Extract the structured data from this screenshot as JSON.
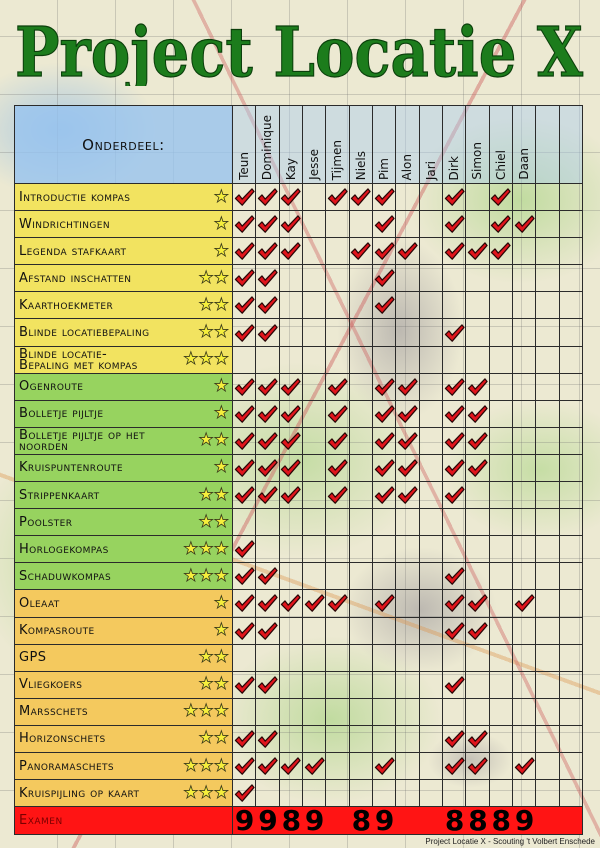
{
  "title": "Project Locatie X",
  "header": {
    "onderdeel_label": "Onderdeel:"
  },
  "participants": [
    "Teun",
    "Dominique",
    "Kay",
    "Jesse",
    "Tijmen",
    "Niels",
    "Pim",
    "Alon",
    "Jari",
    "Dirk",
    "Simon",
    "Chiel",
    "Daan"
  ],
  "rows": [
    {
      "label": "Introductie kompas",
      "stars": 1,
      "band": 0,
      "done": [
        "Teun",
        "Dominique",
        "Kay",
        "Tijmen",
        "Niels",
        "Pim",
        "Dirk",
        "Chiel"
      ]
    },
    {
      "label": "Windrichtingen",
      "stars": 1,
      "band": 0,
      "done": [
        "Teun",
        "Dominique",
        "Kay",
        "Pim",
        "Dirk",
        "Chiel",
        "Daan"
      ]
    },
    {
      "label": "Legenda stafkaart",
      "stars": 1,
      "band": 0,
      "done": [
        "Teun",
        "Dominique",
        "Kay",
        "Niels",
        "Pim",
        "Alon",
        "Dirk",
        "Simon",
        "Chiel"
      ]
    },
    {
      "label": "Afstand inschatten",
      "stars": 2,
      "band": 0,
      "done": [
        "Teun",
        "Dominique",
        "Pim"
      ]
    },
    {
      "label": "Kaarthoekmeter",
      "stars": 2,
      "band": 0,
      "done": [
        "Teun",
        "Dominique",
        "Pim"
      ]
    },
    {
      "label": "Blinde locatiebepaling",
      "stars": 2,
      "band": 0,
      "done": [
        "Teun",
        "Dominique",
        "Dirk"
      ]
    },
    {
      "label": "Blinde locatie-\nBepaling met kompas",
      "stars": 3,
      "band": 0,
      "done": []
    },
    {
      "label": "Ogenroute",
      "stars": 1,
      "band": 1,
      "done": [
        "Teun",
        "Dominique",
        "Kay",
        "Tijmen",
        "Pim",
        "Alon",
        "Dirk",
        "Simon"
      ]
    },
    {
      "label": "Bolletje pijltje",
      "stars": 1,
      "band": 1,
      "done": [
        "Teun",
        "Dominique",
        "Kay",
        "Tijmen",
        "Pim",
        "Alon",
        "Dirk",
        "Simon"
      ]
    },
    {
      "label": "Bolletje pijltje op het\nnoorden",
      "stars": 2,
      "band": 1,
      "done": [
        "Teun",
        "Dominique",
        "Kay",
        "Tijmen",
        "Pim",
        "Alon",
        "Dirk",
        "Simon"
      ]
    },
    {
      "label": "Kruispuntenroute",
      "stars": 1,
      "band": 1,
      "done": [
        "Teun",
        "Dominique",
        "Kay",
        "Tijmen",
        "Pim",
        "Alon",
        "Dirk",
        "Simon"
      ]
    },
    {
      "label": "Strippenkaart",
      "stars": 2,
      "band": 1,
      "done": [
        "Teun",
        "Dominique",
        "Kay",
        "Tijmen",
        "Pim",
        "Alon",
        "Dirk"
      ]
    },
    {
      "label": "Poolster",
      "stars": 2,
      "band": 1,
      "done": []
    },
    {
      "label": "Horlogekompas",
      "stars": 3,
      "band": 1,
      "done": [
        "Teun"
      ]
    },
    {
      "label": "Schaduwkompas",
      "stars": 3,
      "band": 1,
      "done": [
        "Teun",
        "Dominique",
        "Dirk"
      ]
    },
    {
      "label": "Oleaat",
      "stars": 1,
      "band": 2,
      "done": [
        "Teun",
        "Dominique",
        "Kay",
        "Jesse",
        "Tijmen",
        "Pim",
        "Dirk",
        "Simon",
        "Daan"
      ]
    },
    {
      "label": "Kompasroute",
      "stars": 1,
      "band": 2,
      "done": [
        "Teun",
        "Dominique",
        "Dirk",
        "Simon"
      ]
    },
    {
      "label": "GPS",
      "stars": 2,
      "band": 2,
      "done": []
    },
    {
      "label": "Vliegkoers",
      "stars": 2,
      "band": 2,
      "done": [
        "Teun",
        "Dominique",
        "Dirk"
      ]
    },
    {
      "label": "Marsschets",
      "stars": 3,
      "band": 2,
      "done": []
    },
    {
      "label": "Horizonschets",
      "stars": 2,
      "band": 2,
      "done": [
        "Teun",
        "Dominique",
        "Dirk",
        "Simon"
      ]
    },
    {
      "label": "Panoramaschets",
      "stars": 3,
      "band": 2,
      "done": [
        "Teun",
        "Dominique",
        "Kay",
        "Jesse",
        "Pim",
        "Dirk",
        "Simon",
        "Daan"
      ]
    },
    {
      "label": "Kruispijling op kaart",
      "stars": 3,
      "band": 2,
      "done": [
        "Teun"
      ]
    }
  ],
  "examen": {
    "label": "Examen",
    "grades": {
      "Teun": "9",
      "Dominique": "9",
      "Kay": "8",
      "Jesse": "9",
      "Niels": "8",
      "Pim": "9",
      "Dirk": "8",
      "Simon": "8",
      "Chiel": "8",
      "Daan": "9"
    }
  },
  "footer": "Project Locatie X - Scouting 't Volbert Enschede",
  "icons": {
    "check": "check-icon",
    "star": "star-icon"
  },
  "colors": {
    "title": "#1c7c1c",
    "title_outline": "#0b3f0b",
    "header_bg": "#96c3f0",
    "bands": [
      "#f2e360",
      "#97d35f",
      "#f4c95e"
    ],
    "examen_bg": "#ff1414",
    "check": "#e0151c",
    "star": "#f6ef3c"
  }
}
